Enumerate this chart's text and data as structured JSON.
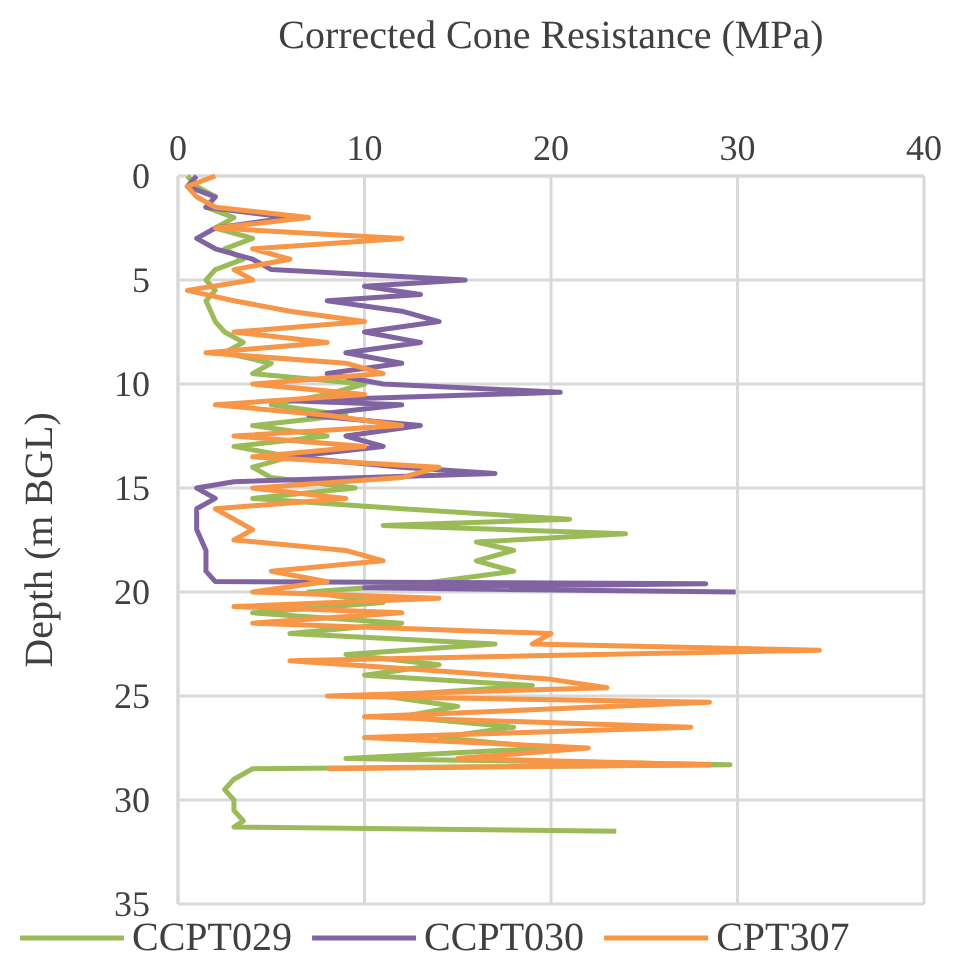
{
  "chart_data": {
    "type": "line",
    "xlabel": "Corrected Cone Resistance (MPa)",
    "ylabel": "Depth (m BGL)",
    "xlim": [
      0,
      40
    ],
    "xticks": [
      0,
      10,
      20,
      30,
      40
    ],
    "ylim": [
      35,
      0
    ],
    "yticks": [
      0,
      5,
      10,
      15,
      20,
      25,
      30,
      35
    ],
    "grid": true,
    "legend": "bottom",
    "marker": "none",
    "line_style": "solid",
    "series": [
      {
        "name": "CCPT029",
        "color": "#9bbb59",
        "x": [
          0.5,
          1,
          2,
          1.5,
          3,
          2,
          4,
          2.5,
          3.5,
          2,
          1.5,
          2,
          1.5,
          2,
          2.5,
          3.5,
          2.5,
          5,
          4,
          10,
          8,
          5,
          9,
          4,
          8,
          3,
          6,
          4,
          5,
          9.5,
          4,
          12,
          21,
          11,
          24,
          16,
          18,
          16,
          18,
          13,
          7,
          11,
          4,
          12,
          6,
          17,
          9,
          14,
          10,
          19,
          11,
          15,
          12,
          18,
          14,
          20,
          9,
          29.6,
          4,
          3,
          2.5,
          3,
          3,
          3.5,
          3,
          23.5
        ],
        "values": [
          0,
          0.5,
          1,
          1.5,
          2,
          2.5,
          3,
          3.5,
          4,
          4.5,
          5,
          5.5,
          6,
          7,
          7.5,
          8,
          8.5,
          9,
          9.5,
          10,
          10.5,
          11,
          11.5,
          12,
          12.5,
          13,
          13.5,
          14,
          14.5,
          15,
          15.5,
          16,
          16.5,
          16.8,
          17.2,
          17.6,
          18,
          18.5,
          19,
          19.6,
          20,
          20.5,
          21,
          21.5,
          22,
          22.5,
          23,
          23.5,
          24,
          24.5,
          25,
          25.5,
          26,
          26.5,
          27,
          27.5,
          28,
          28.3,
          28.5,
          29,
          29.5,
          30,
          30.5,
          31,
          31.3,
          31.5
        ]
      },
      {
        "name": "CCPT030",
        "color": "#8064a2",
        "x": [
          1,
          0.5,
          2,
          1.5,
          6,
          2,
          1,
          2,
          4,
          5,
          15.4,
          10,
          13,
          8,
          12,
          14,
          10,
          13,
          9,
          12,
          8,
          11,
          20.5,
          6,
          12,
          7,
          13,
          9,
          11,
          6,
          12,
          17,
          3,
          1,
          2,
          1,
          1,
          1.5,
          1.5,
          2,
          28.3,
          10,
          29.9
        ],
        "values": [
          0,
          0.5,
          1,
          1.5,
          2,
          2.5,
          3,
          3.5,
          4,
          4.5,
          5,
          5.3,
          5.7,
          6,
          6.5,
          7,
          7.5,
          8,
          8.5,
          9,
          9.5,
          10,
          10.4,
          10.8,
          11,
          11.5,
          12,
          12.5,
          13,
          13.5,
          14,
          14.3,
          14.7,
          15,
          15.5,
          16,
          17,
          18,
          19,
          19.5,
          19.6,
          19.8,
          20
        ]
      },
      {
        "name": "CPT307",
        "color": "#f79646",
        "x": [
          2,
          0.5,
          1,
          2,
          7,
          2,
          12,
          4,
          6,
          3,
          4,
          0.5,
          3,
          6,
          10,
          3,
          8,
          1.5,
          9,
          11,
          4,
          10,
          2,
          8,
          12,
          3,
          10,
          4,
          14,
          12,
          4,
          9,
          2,
          4,
          3,
          9,
          11,
          5,
          8,
          4,
          14,
          3,
          12,
          4,
          20,
          19,
          34.4,
          6,
          14,
          20,
          23,
          8,
          28.5,
          18,
          10,
          27.5,
          10,
          22,
          15,
          28.5,
          8
        ],
        "values": [
          0,
          0.5,
          1,
          1.5,
          2,
          2.5,
          3,
          3.5,
          4,
          4.5,
          5,
          5.5,
          6,
          6.5,
          7,
          7.5,
          8,
          8.5,
          9,
          9.5,
          10,
          10.5,
          11,
          11.5,
          12,
          12.5,
          13,
          13.5,
          14,
          14.5,
          15,
          15.5,
          16,
          17,
          17.5,
          18,
          18.5,
          19,
          19.5,
          20,
          20.3,
          20.7,
          21,
          21.5,
          22,
          22.5,
          22.8,
          23.3,
          23.8,
          24.2,
          24.6,
          25,
          25.3,
          25.7,
          26,
          26.5,
          27,
          27.5,
          28,
          28.3,
          28.5
        ]
      }
    ]
  }
}
